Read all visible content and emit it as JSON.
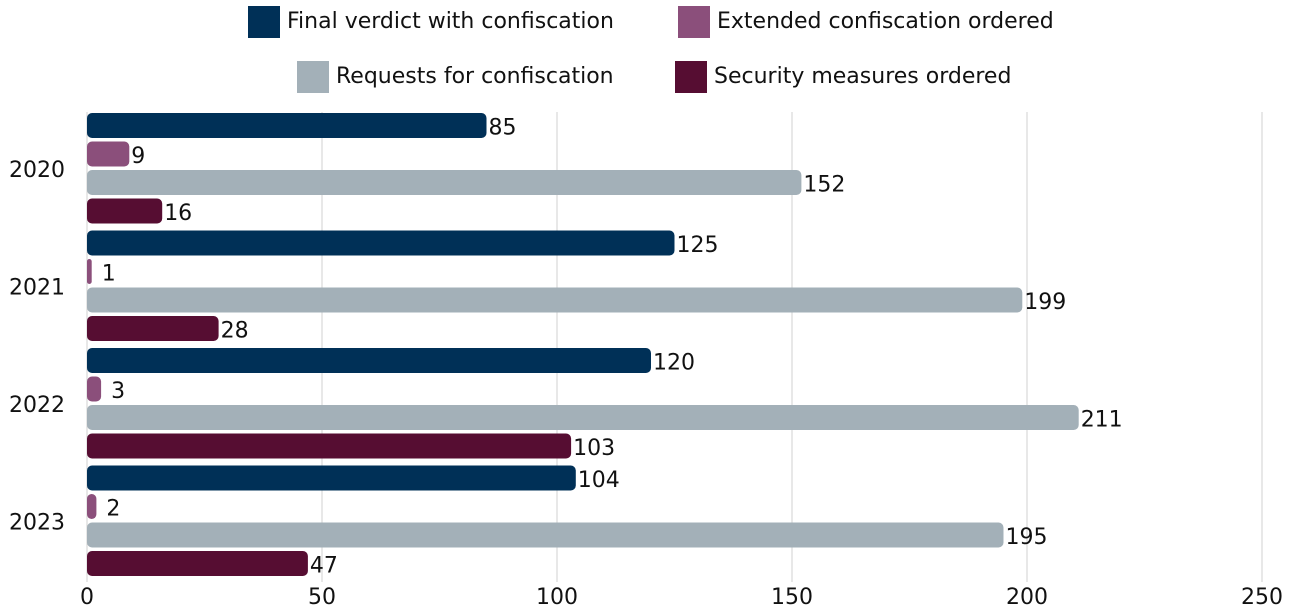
{
  "chart_data": {
    "type": "hbar",
    "categories": [
      "2020",
      "2021",
      "2022",
      "2023"
    ],
    "series": [
      {
        "name": "Final verdict with confiscation",
        "color": "#003057",
        "values": [
          85,
          125,
          120,
          104
        ]
      },
      {
        "name": "Extended confiscation ordered",
        "color": "#8b4f7b",
        "values": [
          9,
          1,
          3,
          2
        ]
      },
      {
        "name": "Requests for confiscation",
        "color": "#a3b0b8",
        "values": [
          152,
          199,
          211,
          195
        ]
      },
      {
        "name": "Security measures ordered",
        "color": "#560d32",
        "values": [
          16,
          28,
          103,
          47
        ]
      }
    ],
    "xlim": [
      0,
      250
    ],
    "xticks": [
      0,
      50,
      100,
      150,
      200,
      250
    ],
    "grid": true
  }
}
